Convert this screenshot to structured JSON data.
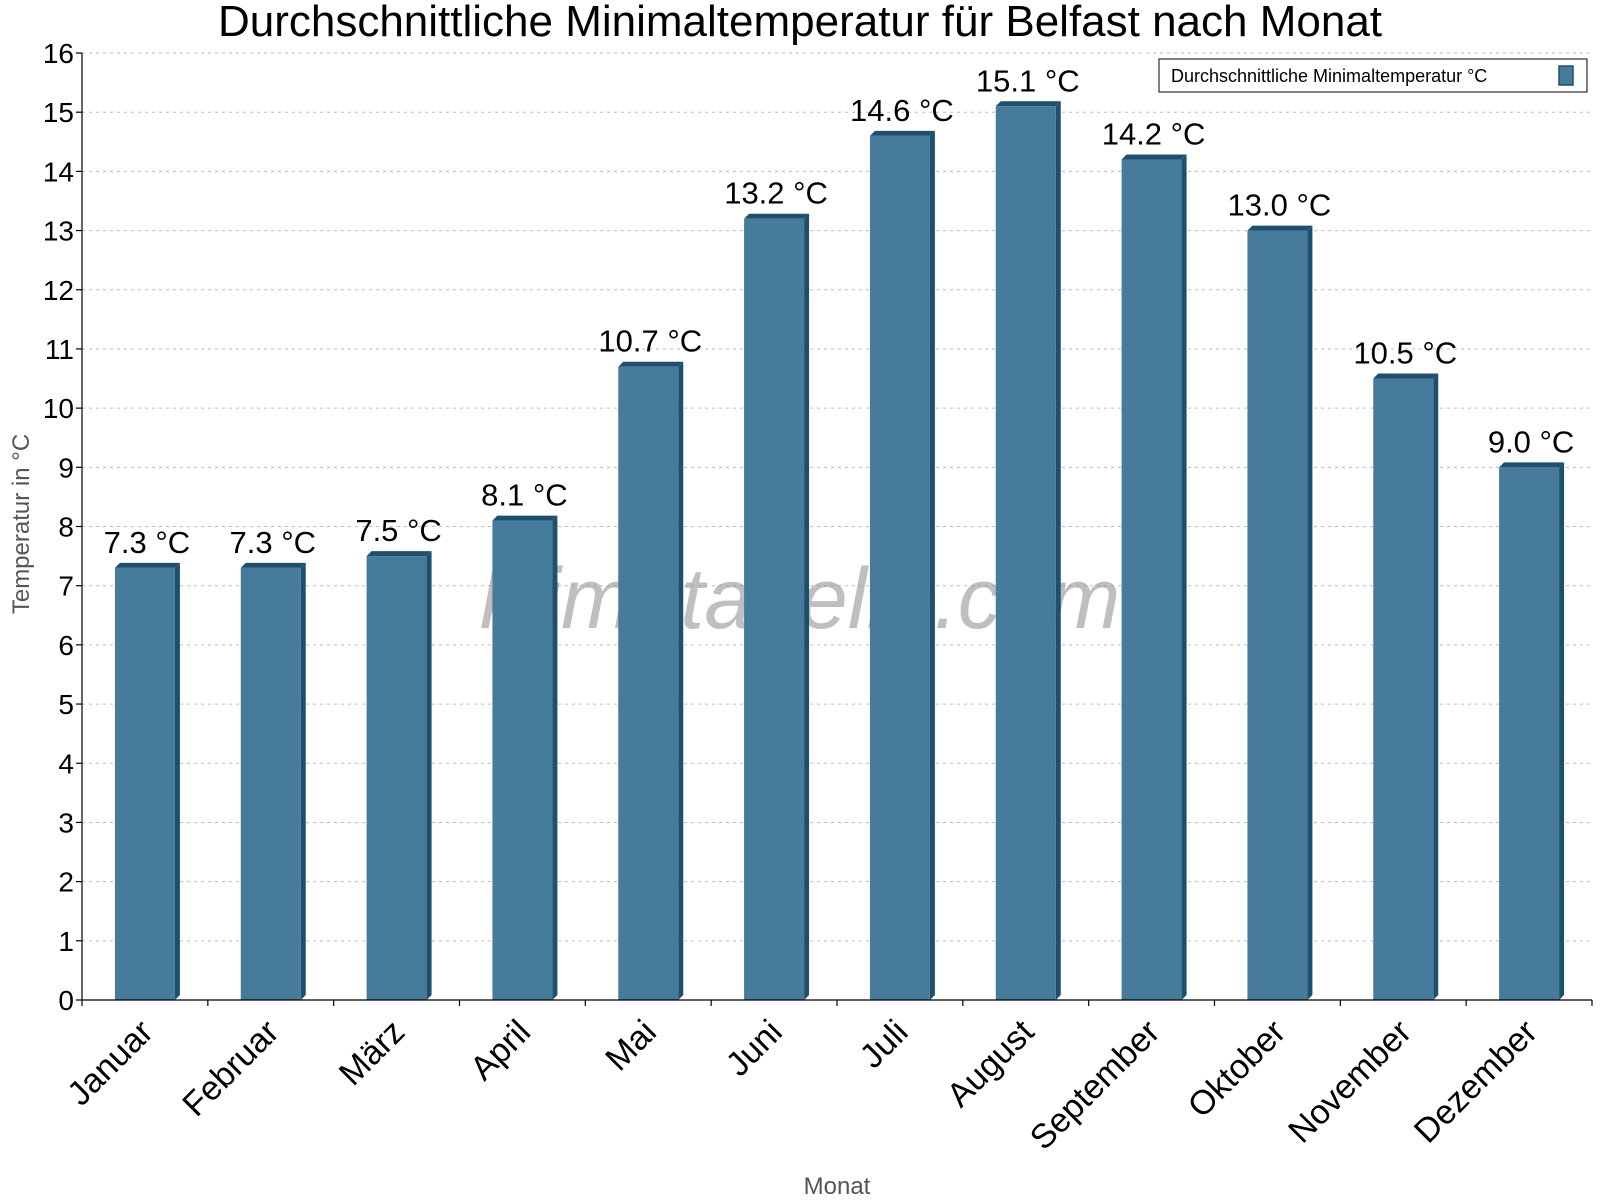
{
  "chart_data": {
    "type": "bar",
    "title": "Durchschnittliche Minimaltemperatur für Belfast nach Monat",
    "xlabel": "Monat",
    "ylabel": "Temperatur in °C",
    "categories": [
      "Januar",
      "Februar",
      "März",
      "April",
      "Mai",
      "Juni",
      "Juli",
      "August",
      "September",
      "Oktober",
      "November",
      "Dezember"
    ],
    "series": [
      {
        "name": "Durchschnittliche Minimaltemperatur °C",
        "values": [
          7.3,
          7.3,
          7.5,
          8.1,
          10.7,
          13.2,
          14.6,
          15.1,
          14.2,
          13.0,
          10.5,
          9.0
        ],
        "labels": [
          "7.3 °C",
          "7.3 °C",
          "7.5 °C",
          "8.1 °C",
          "10.7 °C",
          "13.2 °C",
          "14.6 °C",
          "15.1 °C",
          "14.2 °C",
          "13.0 °C",
          "10.5 °C",
          "9.0 °C"
        ]
      }
    ],
    "ylim": [
      0,
      16
    ],
    "yticks": [
      0,
      1,
      2,
      3,
      4,
      5,
      6,
      7,
      8,
      9,
      10,
      11,
      12,
      13,
      14,
      15,
      16
    ],
    "grid": true,
    "legend_position": "top-right",
    "colors": {
      "bar_front": "#467b9c",
      "bar_side": "#1f4f6e",
      "bar_top": "#1f4f6e"
    }
  },
  "watermark": "klimatabelle.com"
}
